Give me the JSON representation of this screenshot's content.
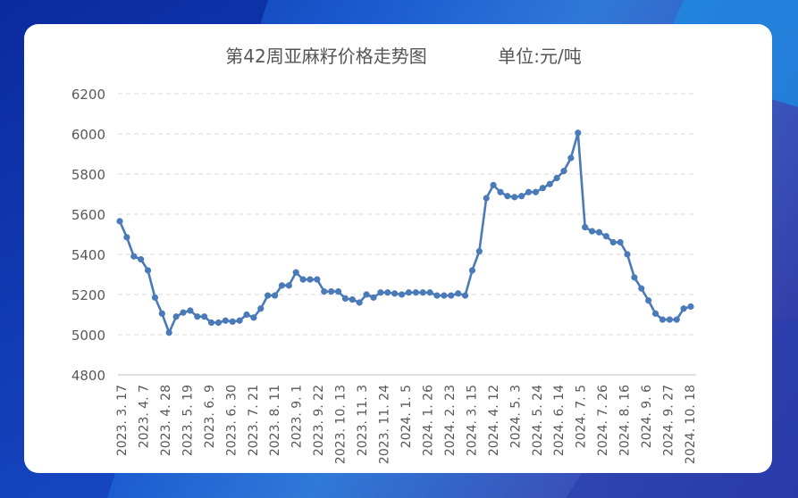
{
  "chart_data": {
    "type": "line",
    "title": "第42周亚麻籽价格走势图",
    "unit_label": "单位:元/吨",
    "ylim": [
      4800,
      6200
    ],
    "yticks": [
      4800,
      5000,
      5200,
      5400,
      5600,
      5800,
      6000,
      6200
    ],
    "xtick_labels": [
      "2023. 3. 17",
      "2023. 4. 7",
      "2023. 4. 28",
      "2023. 5. 19",
      "2023. 6. 9",
      "2023. 6. 30",
      "2023. 7. 21",
      "2023. 8. 11",
      "2023. 9. 1",
      "2023. 9. 22",
      "2023. 10. 13",
      "2023. 11. 3",
      "2023. 11. 24",
      "2024. 1. 5",
      "2024. 1. 26",
      "2024. 2. 23",
      "2024. 3. 15",
      "2024. 4. 12",
      "2024. 5. 3",
      "2024. 5. 24",
      "2024. 6. 14",
      "2024. 7. 5",
      "2024. 7. 26",
      "2024. 8. 16",
      "2024. 9. 6",
      "2024. 9. 27",
      "2024. 10. 18"
    ],
    "series": [
      {
        "name": "亚麻籽价格",
        "color": "#4a7ab8",
        "values": [
          5565,
          5485,
          5390,
          5375,
          5320,
          5185,
          5105,
          5010,
          5090,
          5110,
          5120,
          5090,
          5090,
          5060,
          5060,
          5070,
          5065,
          5070,
          5100,
          5085,
          5130,
          5195,
          5195,
          5245,
          5245,
          5310,
          5275,
          5275,
          5275,
          5215,
          5215,
          5215,
          5180,
          5175,
          5160,
          5200,
          5185,
          5210,
          5210,
          5205,
          5200,
          5210,
          5210,
          5210,
          5210,
          5195,
          5195,
          5195,
          5205,
          5195,
          5320,
          5415,
          5680,
          5745,
          5710,
          5690,
          5685,
          5690,
          5710,
          5710,
          5730,
          5750,
          5780,
          5815,
          5880,
          6005,
          5535,
          5515,
          5510,
          5490,
          5460,
          5460,
          5400,
          5285,
          5230,
          5170,
          5105,
          5075,
          5075,
          5075,
          5130,
          5140
        ]
      }
    ]
  }
}
